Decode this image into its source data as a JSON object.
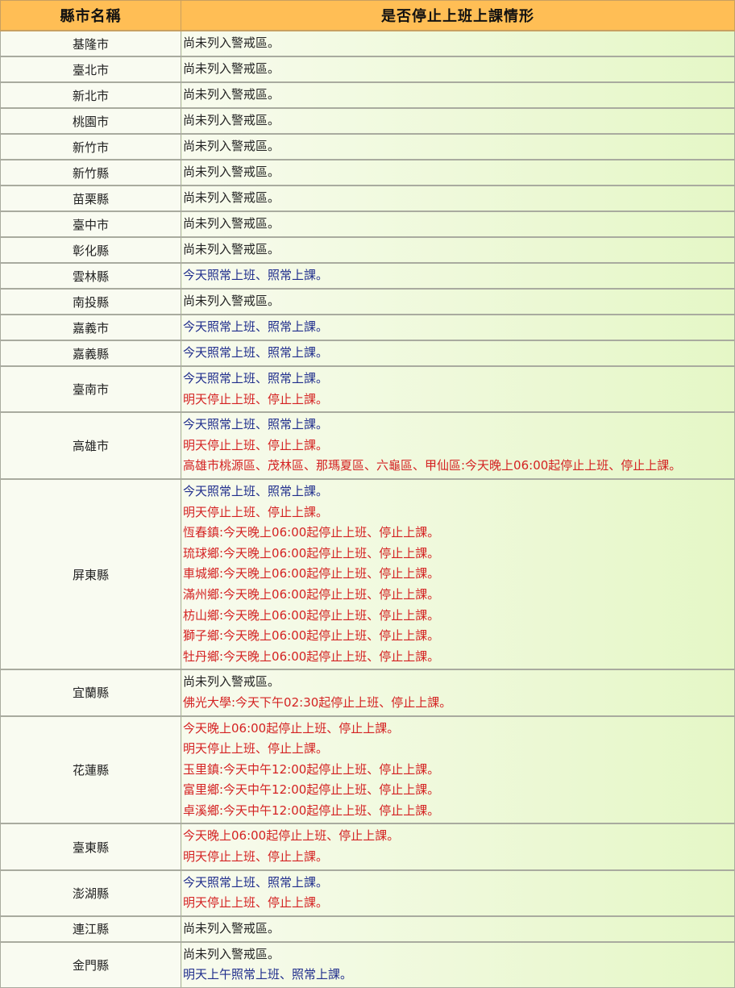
{
  "header": {
    "city_col": "縣市名稱",
    "status_col": "是否停止上班上課情形"
  },
  "colors": {
    "header_bg": "#FFBE55",
    "normal": "#222222",
    "open": "#1f2d8c",
    "closed": "#d42222"
  },
  "rows": [
    {
      "city": "基隆市",
      "lines": [
        {
          "text": "尚未列入警戒區。",
          "type": "normal"
        }
      ]
    },
    {
      "city": "臺北市",
      "lines": [
        {
          "text": "尚未列入警戒區。",
          "type": "normal"
        }
      ]
    },
    {
      "city": "新北市",
      "lines": [
        {
          "text": "尚未列入警戒區。",
          "type": "normal"
        }
      ]
    },
    {
      "city": "桃園市",
      "lines": [
        {
          "text": "尚未列入警戒區。",
          "type": "normal"
        }
      ]
    },
    {
      "city": "新竹市",
      "lines": [
        {
          "text": "尚未列入警戒區。",
          "type": "normal"
        }
      ]
    },
    {
      "city": "新竹縣",
      "lines": [
        {
          "text": "尚未列入警戒區。",
          "type": "normal"
        }
      ]
    },
    {
      "city": "苗栗縣",
      "lines": [
        {
          "text": "尚未列入警戒區。",
          "type": "normal"
        }
      ]
    },
    {
      "city": "臺中市",
      "lines": [
        {
          "text": "尚未列入警戒區。",
          "type": "normal"
        }
      ]
    },
    {
      "city": "彰化縣",
      "lines": [
        {
          "text": "尚未列入警戒區。",
          "type": "normal"
        }
      ]
    },
    {
      "city": "雲林縣",
      "lines": [
        {
          "text": "今天照常上班、照常上課。",
          "type": "open"
        }
      ]
    },
    {
      "city": "南投縣",
      "lines": [
        {
          "text": "尚未列入警戒區。",
          "type": "normal"
        }
      ]
    },
    {
      "city": "嘉義市",
      "lines": [
        {
          "text": "今天照常上班、照常上課。",
          "type": "open"
        }
      ]
    },
    {
      "city": "嘉義縣",
      "lines": [
        {
          "text": "今天照常上班、照常上課。",
          "type": "open"
        }
      ]
    },
    {
      "city": "臺南市",
      "lines": [
        {
          "text": "今天照常上班、照常上課。",
          "type": "open"
        },
        {
          "text": "明天停止上班、停止上課。",
          "type": "closed"
        }
      ]
    },
    {
      "city": "高雄市",
      "lines": [
        {
          "text": "今天照常上班、照常上課。",
          "type": "open"
        },
        {
          "text": "明天停止上班、停止上課。",
          "type": "closed"
        },
        {
          "text": "高雄市桃源區、茂林區、那瑪夏區、六龜區、甲仙區:今天晚上06:00起停止上班、停止上課。",
          "type": "closed"
        }
      ]
    },
    {
      "city": "屏東縣",
      "lines": [
        {
          "text": "今天照常上班、照常上課。",
          "type": "open"
        },
        {
          "text": "明天停止上班、停止上課。",
          "type": "closed"
        },
        {
          "text": "恆春鎮:今天晚上06:00起停止上班、停止上課。",
          "type": "closed"
        },
        {
          "text": "琉球鄉:今天晚上06:00起停止上班、停止上課。",
          "type": "closed"
        },
        {
          "text": "車城鄉:今天晚上06:00起停止上班、停止上課。",
          "type": "closed"
        },
        {
          "text": "滿州鄉:今天晚上06:00起停止上班、停止上課。",
          "type": "closed"
        },
        {
          "text": "枋山鄉:今天晚上06:00起停止上班、停止上課。",
          "type": "closed"
        },
        {
          "text": "獅子鄉:今天晚上06:00起停止上班、停止上課。",
          "type": "closed"
        },
        {
          "text": "牡丹鄉:今天晚上06:00起停止上班、停止上課。",
          "type": "closed"
        }
      ]
    },
    {
      "city": "宜蘭縣",
      "lines": [
        {
          "text": "尚未列入警戒區。",
          "type": "normal"
        },
        {
          "text": "佛光大學:今天下午02:30起停止上班、停止上課。",
          "type": "closed"
        }
      ]
    },
    {
      "city": "花蓮縣",
      "lines": [
        {
          "text": "今天晚上06:00起停止上班、停止上課。",
          "type": "closed"
        },
        {
          "text": "明天停止上班、停止上課。",
          "type": "closed"
        },
        {
          "text": "玉里鎮:今天中午12:00起停止上班、停止上課。",
          "type": "closed"
        },
        {
          "text": "富里鄉:今天中午12:00起停止上班、停止上課。",
          "type": "closed"
        },
        {
          "text": "卓溪鄉:今天中午12:00起停止上班、停止上課。",
          "type": "closed"
        }
      ]
    },
    {
      "city": "臺東縣",
      "lines": [
        {
          "text": "今天晚上06:00起停止上班、停止上課。",
          "type": "closed"
        },
        {
          "text": "明天停止上班、停止上課。",
          "type": "closed"
        }
      ]
    },
    {
      "city": "澎湖縣",
      "lines": [
        {
          "text": "今天照常上班、照常上課。",
          "type": "open"
        },
        {
          "text": "明天停止上班、停止上課。",
          "type": "closed"
        }
      ]
    },
    {
      "city": "連江縣",
      "lines": [
        {
          "text": "尚未列入警戒區。",
          "type": "normal"
        }
      ]
    },
    {
      "city": "金門縣",
      "lines": [
        {
          "text": "尚未列入警戒區。",
          "type": "normal"
        },
        {
          "text": "明天上午照常上班、照常上課。",
          "type": "open"
        }
      ]
    }
  ]
}
